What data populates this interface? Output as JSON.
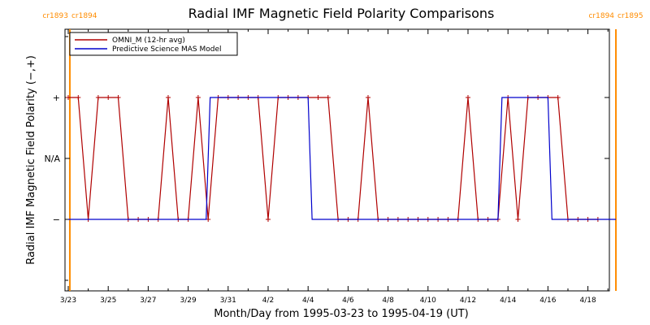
{
  "chart_data": {
    "type": "line",
    "title": "Radial IMF Magnetic Field Polarity Comparisons",
    "xlabel": "Month/Day from 1995-03-23 to 1995-04-19 (UT)",
    "ylabel": "Radial IMF Magnetic Field Polarity (−,+)",
    "x_start_date": "1995-03-23",
    "xlim_days": [
      0,
      27.5
    ],
    "ylim": [
      -2,
      2
    ],
    "x_ticks": [
      {
        "day": 0,
        "label": "3/23"
      },
      {
        "day": 2,
        "label": "3/25"
      },
      {
        "day": 4,
        "label": "3/27"
      },
      {
        "day": 6,
        "label": "3/29"
      },
      {
        "day": 8,
        "label": "3/31"
      },
      {
        "day": 10,
        "label": "4/2"
      },
      {
        "day": 12,
        "label": "4/4"
      },
      {
        "day": 14,
        "label": "4/6"
      },
      {
        "day": 16,
        "label": "4/8"
      },
      {
        "day": 18,
        "label": "4/10"
      },
      {
        "day": 20,
        "label": "4/12"
      },
      {
        "day": 22,
        "label": "4/14"
      },
      {
        "day": 24,
        "label": "4/16"
      },
      {
        "day": 26,
        "label": "4/18"
      }
    ],
    "y_ticks": [
      {
        "value": 1,
        "label": "+"
      },
      {
        "value": 0,
        "label": "N/A"
      },
      {
        "value": -1,
        "label": "−"
      }
    ],
    "carrington_markers": [
      {
        "day": 0.08,
        "label_left": "cr1893",
        "label_right": "cr1894"
      },
      {
        "day": 27.4,
        "label_left": "cr1894",
        "label_right": "cr1895"
      }
    ],
    "series": [
      {
        "name": "OMNI_M (12-hr avg)",
        "color": "#b00000",
        "markers": true,
        "points": [
          [
            0.0,
            1
          ],
          [
            0.5,
            1
          ],
          [
            1.0,
            -1
          ],
          [
            1.5,
            1
          ],
          [
            2.0,
            1
          ],
          [
            2.5,
            1
          ],
          [
            3.0,
            -1
          ],
          [
            3.5,
            -1
          ],
          [
            4.0,
            -1
          ],
          [
            4.5,
            -1
          ],
          [
            5.0,
            1
          ],
          [
            5.5,
            -1
          ],
          [
            6.0,
            -1
          ],
          [
            6.5,
            1
          ],
          [
            7.0,
            -1
          ],
          [
            7.5,
            1
          ],
          [
            8.0,
            1
          ],
          [
            8.5,
            1
          ],
          [
            9.0,
            1
          ],
          [
            9.5,
            1
          ],
          [
            10.0,
            -1
          ],
          [
            10.5,
            1
          ],
          [
            11.0,
            1
          ],
          [
            11.5,
            1
          ],
          [
            12.0,
            1
          ],
          [
            12.5,
            1
          ],
          [
            13.0,
            1
          ],
          [
            13.5,
            -1
          ],
          [
            14.0,
            -1
          ],
          [
            14.5,
            -1
          ],
          [
            15.0,
            1
          ],
          [
            15.5,
            -1
          ],
          [
            16.0,
            -1
          ],
          [
            16.5,
            -1
          ],
          [
            17.0,
            -1
          ],
          [
            17.5,
            -1
          ],
          [
            18.0,
            -1
          ],
          [
            18.5,
            -1
          ],
          [
            19.0,
            -1
          ],
          [
            19.5,
            -1
          ],
          [
            20.0,
            1
          ],
          [
            20.5,
            -1
          ],
          [
            21.0,
            -1
          ],
          [
            21.5,
            -1
          ],
          [
            22.0,
            1
          ],
          [
            22.5,
            -1
          ],
          [
            23.0,
            1
          ],
          [
            23.5,
            1
          ],
          [
            24.0,
            1
          ],
          [
            24.5,
            1
          ],
          [
            25.0,
            -1
          ],
          [
            25.5,
            -1
          ],
          [
            26.0,
            -1
          ],
          [
            26.5,
            -1
          ]
        ]
      },
      {
        "name": "Predictive Science MAS Model",
        "color": "#0000cc",
        "markers": false,
        "points": [
          [
            0.0,
            -1
          ],
          [
            6.9,
            -1
          ],
          [
            7.1,
            1
          ],
          [
            12.0,
            1
          ],
          [
            12.2,
            -1
          ],
          [
            21.5,
            -1
          ],
          [
            21.7,
            1
          ],
          [
            24.0,
            1
          ],
          [
            24.2,
            -1
          ],
          [
            27.4,
            -1
          ]
        ]
      }
    ],
    "legend": {
      "placement": "top-left",
      "entries": [
        "OMNI_M (12-hr avg)",
        "Predictive Science MAS Model"
      ]
    },
    "grid": false
  }
}
